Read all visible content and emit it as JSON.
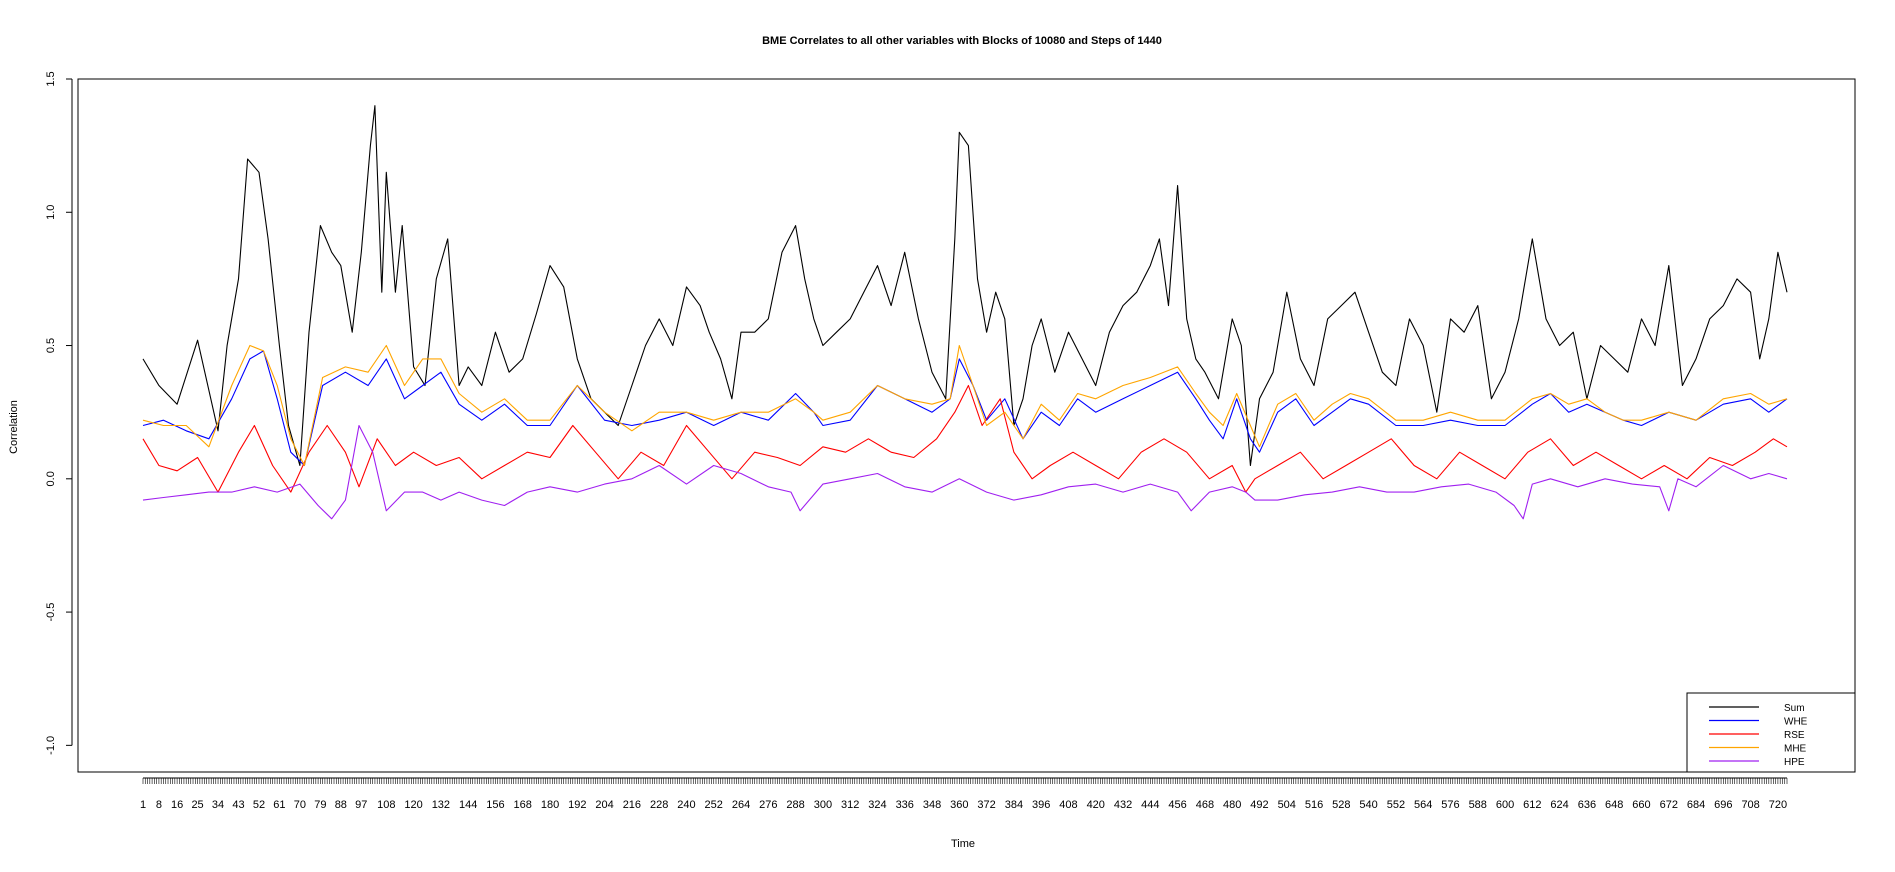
{
  "chart_data": {
    "type": "line",
    "title": "BME Correlates to all other variables with Blocks of 10080 and Steps of 1440",
    "xlabel": "Time",
    "ylabel": "Correlation",
    "xlim": [
      1,
      724
    ],
    "ylim": [
      -1.1,
      1.5
    ],
    "y_ticks": [
      "-1.0",
      "-0.5",
      "0.0",
      "0.5",
      "1.0",
      "1.5"
    ],
    "y_tick_values": [
      -1.0,
      -0.5,
      0.0,
      0.5,
      1.0,
      1.5
    ],
    "x_tick_labels": [
      1,
      8,
      16,
      25,
      34,
      43,
      52,
      61,
      70,
      79,
      88,
      97,
      108,
      120,
      132,
      144,
      156,
      168,
      180,
      192,
      204,
      216,
      228,
      240,
      252,
      264,
      276,
      288,
      300,
      312,
      324,
      336,
      348,
      360,
      372,
      384,
      396,
      408,
      420,
      432,
      444,
      456,
      468,
      480,
      492,
      504,
      516,
      528,
      540,
      552,
      564,
      576,
      588,
      600,
      612,
      624,
      636,
      648,
      660,
      672,
      684,
      696,
      708,
      720
    ],
    "grid": false,
    "legend_position": "bottom-right",
    "legend": [
      "Sum",
      "WHE",
      "RSE",
      "MHE",
      "HPE"
    ],
    "series": [
      {
        "name": "Sum",
        "color": "#000000",
        "x": [
          1,
          8,
          16,
          25,
          34,
          38,
          43,
          47,
          52,
          56,
          61,
          65,
          70,
          74,
          79,
          84,
          88,
          93,
          97,
          101,
          103,
          106,
          108,
          112,
          115,
          120,
          125,
          130,
          135,
          140,
          144,
          150,
          156,
          162,
          168,
          174,
          180,
          186,
          192,
          198,
          204,
          210,
          216,
          222,
          228,
          234,
          240,
          246,
          250,
          255,
          260,
          264,
          270,
          276,
          282,
          288,
          292,
          296,
          300,
          306,
          312,
          318,
          324,
          330,
          336,
          342,
          348,
          354,
          358,
          360,
          364,
          368,
          372,
          376,
          380,
          384,
          388,
          392,
          396,
          402,
          408,
          414,
          420,
          426,
          432,
          438,
          444,
          448,
          452,
          456,
          460,
          464,
          468,
          474,
          480,
          484,
          488,
          492,
          498,
          504,
          510,
          516,
          522,
          528,
          534,
          540,
          546,
          552,
          558,
          564,
          570,
          576,
          582,
          588,
          594,
          600,
          606,
          612,
          618,
          624,
          630,
          636,
          642,
          648,
          654,
          660,
          666,
          672,
          678,
          684,
          690,
          696,
          702,
          708,
          712,
          716,
          720,
          724
        ],
        "y": [
          0.45,
          0.35,
          0.28,
          0.52,
          0.18,
          0.5,
          0.75,
          1.2,
          1.15,
          0.9,
          0.5,
          0.2,
          0.05,
          0.55,
          0.95,
          0.85,
          0.8,
          0.55,
          0.85,
          1.25,
          1.4,
          0.7,
          1.15,
          0.7,
          0.95,
          0.42,
          0.35,
          0.75,
          0.9,
          0.35,
          0.42,
          0.35,
          0.55,
          0.4,
          0.45,
          0.62,
          0.8,
          0.72,
          0.45,
          0.3,
          0.25,
          0.2,
          0.35,
          0.5,
          0.6,
          0.5,
          0.72,
          0.65,
          0.55,
          0.45,
          0.3,
          0.55,
          0.55,
          0.6,
          0.85,
          0.95,
          0.75,
          0.6,
          0.5,
          0.55,
          0.6,
          0.7,
          0.8,
          0.65,
          0.85,
          0.6,
          0.4,
          0.3,
          0.9,
          1.3,
          1.25,
          0.75,
          0.55,
          0.7,
          0.6,
          0.2,
          0.3,
          0.5,
          0.6,
          0.4,
          0.55,
          0.45,
          0.35,
          0.55,
          0.65,
          0.7,
          0.8,
          0.9,
          0.65,
          1.1,
          0.6,
          0.45,
          0.4,
          0.3,
          0.6,
          0.5,
          0.05,
          0.3,
          0.4,
          0.7,
          0.45,
          0.35,
          0.6,
          0.65,
          0.7,
          0.55,
          0.4,
          0.35,
          0.6,
          0.5,
          0.25,
          0.6,
          0.55,
          0.65,
          0.3,
          0.4,
          0.6,
          0.9,
          0.6,
          0.5,
          0.55,
          0.3,
          0.5,
          0.45,
          0.4,
          0.6,
          0.5,
          0.8,
          0.35,
          0.45,
          0.6,
          0.65,
          0.75,
          0.7,
          0.45,
          0.6,
          0.85,
          0.7
        ]
      },
      {
        "name": "WHE",
        "color": "#0000ff",
        "x": [
          1,
          10,
          20,
          30,
          40,
          48,
          54,
          60,
          66,
          72,
          80,
          90,
          100,
          108,
          116,
          124,
          132,
          140,
          150,
          160,
          170,
          180,
          192,
          204,
          216,
          228,
          240,
          252,
          264,
          276,
          288,
          296,
          300,
          312,
          324,
          336,
          348,
          356,
          360,
          366,
          372,
          380,
          388,
          396,
          404,
          412,
          420,
          432,
          444,
          456,
          464,
          470,
          476,
          482,
          488,
          492,
          500,
          508,
          516,
          524,
          532,
          540,
          552,
          564,
          576,
          588,
          600,
          612,
          620,
          628,
          636,
          644,
          652,
          660,
          672,
          684,
          696,
          708,
          716,
          724
        ],
        "y": [
          0.2,
          0.22,
          0.18,
          0.15,
          0.3,
          0.45,
          0.48,
          0.3,
          0.1,
          0.05,
          0.35,
          0.4,
          0.35,
          0.45,
          0.3,
          0.35,
          0.4,
          0.28,
          0.22,
          0.28,
          0.2,
          0.2,
          0.35,
          0.22,
          0.2,
          0.22,
          0.25,
          0.2,
          0.25,
          0.22,
          0.32,
          0.25,
          0.2,
          0.22,
          0.35,
          0.3,
          0.25,
          0.3,
          0.45,
          0.35,
          0.22,
          0.3,
          0.15,
          0.25,
          0.2,
          0.3,
          0.25,
          0.3,
          0.35,
          0.4,
          0.3,
          0.22,
          0.15,
          0.3,
          0.15,
          0.1,
          0.25,
          0.3,
          0.2,
          0.25,
          0.3,
          0.28,
          0.2,
          0.2,
          0.22,
          0.2,
          0.2,
          0.28,
          0.32,
          0.25,
          0.28,
          0.25,
          0.22,
          0.2,
          0.25,
          0.22,
          0.28,
          0.3,
          0.25,
          0.3
        ]
      },
      {
        "name": "RSE",
        "color": "#ff0000",
        "x": [
          1,
          8,
          16,
          25,
          34,
          43,
          50,
          58,
          66,
          74,
          82,
          90,
          96,
          104,
          112,
          120,
          130,
          140,
          150,
          160,
          170,
          180,
          190,
          200,
          210,
          220,
          230,
          240,
          250,
          260,
          270,
          280,
          290,
          300,
          310,
          320,
          330,
          340,
          350,
          358,
          364,
          370,
          378,
          384,
          392,
          400,
          410,
          420,
          430,
          440,
          450,
          460,
          470,
          480,
          486,
          490,
          500,
          510,
          520,
          530,
          540,
          550,
          560,
          570,
          580,
          590,
          600,
          610,
          620,
          630,
          640,
          650,
          660,
          670,
          680,
          690,
          700,
          710,
          718,
          724
        ],
        "y": [
          0.15,
          0.05,
          0.03,
          0.08,
          -0.05,
          0.1,
          0.2,
          0.05,
          -0.05,
          0.1,
          0.2,
          0.1,
          -0.03,
          0.15,
          0.05,
          0.1,
          0.05,
          0.08,
          0.0,
          0.05,
          0.1,
          0.08,
          0.2,
          0.1,
          0.0,
          0.1,
          0.05,
          0.2,
          0.1,
          0.0,
          0.1,
          0.08,
          0.05,
          0.12,
          0.1,
          0.15,
          0.1,
          0.08,
          0.15,
          0.25,
          0.35,
          0.2,
          0.3,
          0.1,
          0.0,
          0.05,
          0.1,
          0.05,
          0.0,
          0.1,
          0.15,
          0.1,
          0.0,
          0.05,
          -0.05,
          0.0,
          0.05,
          0.1,
          0.0,
          0.05,
          0.1,
          0.15,
          0.05,
          0.0,
          0.1,
          0.05,
          0.0,
          0.1,
          0.15,
          0.05,
          0.1,
          0.05,
          0.0,
          0.05,
          0.0,
          0.08,
          0.05,
          0.1,
          0.15,
          0.12
        ]
      },
      {
        "name": "MHE",
        "color": "#ffa500",
        "x": [
          1,
          10,
          20,
          30,
          40,
          48,
          54,
          60,
          66,
          72,
          80,
          90,
          100,
          108,
          116,
          124,
          132,
          140,
          150,
          160,
          170,
          180,
          192,
          204,
          216,
          228,
          240,
          252,
          264,
          276,
          288,
          296,
          300,
          312,
          324,
          336,
          348,
          356,
          360,
          366,
          372,
          380,
          388,
          396,
          404,
          412,
          420,
          432,
          444,
          456,
          464,
          470,
          476,
          482,
          488,
          492,
          500,
          508,
          516,
          524,
          532,
          540,
          552,
          564,
          576,
          588,
          600,
          612,
          620,
          628,
          636,
          644,
          652,
          660,
          672,
          684,
          696,
          708,
          716,
          724
        ],
        "y": [
          0.22,
          0.2,
          0.2,
          0.12,
          0.35,
          0.5,
          0.48,
          0.35,
          0.15,
          0.05,
          0.38,
          0.42,
          0.4,
          0.5,
          0.35,
          0.45,
          0.45,
          0.32,
          0.25,
          0.3,
          0.22,
          0.22,
          0.35,
          0.25,
          0.18,
          0.25,
          0.25,
          0.22,
          0.25,
          0.25,
          0.3,
          0.25,
          0.22,
          0.25,
          0.35,
          0.3,
          0.28,
          0.3,
          0.5,
          0.35,
          0.2,
          0.25,
          0.15,
          0.28,
          0.22,
          0.32,
          0.3,
          0.35,
          0.38,
          0.42,
          0.32,
          0.25,
          0.2,
          0.32,
          0.2,
          0.12,
          0.28,
          0.32,
          0.22,
          0.28,
          0.32,
          0.3,
          0.22,
          0.22,
          0.25,
          0.22,
          0.22,
          0.3,
          0.32,
          0.28,
          0.3,
          0.25,
          0.22,
          0.22,
          0.25,
          0.22,
          0.3,
          0.32,
          0.28,
          0.3
        ]
      },
      {
        "name": "HPE",
        "color": "#a020f0",
        "x": [
          1,
          10,
          20,
          30,
          40,
          50,
          60,
          70,
          78,
          84,
          90,
          96,
          102,
          108,
          116,
          124,
          132,
          140,
          150,
          160,
          170,
          180,
          192,
          204,
          216,
          228,
          240,
          252,
          264,
          276,
          286,
          290,
          300,
          312,
          324,
          336,
          348,
          360,
          372,
          384,
          396,
          408,
          420,
          432,
          444,
          456,
          462,
          470,
          480,
          486,
          490,
          500,
          512,
          524,
          536,
          548,
          560,
          572,
          584,
          596,
          604,
          608,
          612,
          620,
          632,
          644,
          656,
          668,
          672,
          676,
          684,
          696,
          708,
          716,
          724
        ],
        "y": [
          -0.08,
          -0.07,
          -0.06,
          -0.05,
          -0.05,
          -0.03,
          -0.05,
          -0.02,
          -0.1,
          -0.15,
          -0.08,
          0.2,
          0.1,
          -0.12,
          -0.05,
          -0.05,
          -0.08,
          -0.05,
          -0.08,
          -0.1,
          -0.05,
          -0.03,
          -0.05,
          -0.02,
          0.0,
          0.05,
          -0.02,
          0.05,
          0.02,
          -0.03,
          -0.05,
          -0.12,
          -0.02,
          0.0,
          0.02,
          -0.03,
          -0.05,
          0.0,
          -0.05,
          -0.08,
          -0.06,
          -0.03,
          -0.02,
          -0.05,
          -0.02,
          -0.05,
          -0.12,
          -0.05,
          -0.03,
          -0.05,
          -0.08,
          -0.08,
          -0.06,
          -0.05,
          -0.03,
          -0.05,
          -0.05,
          -0.03,
          -0.02,
          -0.05,
          -0.1,
          -0.15,
          -0.02,
          0.0,
          -0.03,
          0.0,
          -0.02,
          -0.03,
          -0.12,
          0.0,
          -0.03,
          0.05,
          0.0,
          0.02,
          0.0
        ]
      }
    ]
  }
}
